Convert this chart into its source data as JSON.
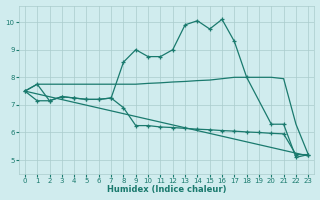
{
  "xlabel": "Humidex (Indice chaleur)",
  "bg_color": "#d0ecee",
  "grid_color": "#aacccc",
  "line_color": "#1a7a6e",
  "xlim": [
    -0.5,
    23.5
  ],
  "ylim": [
    4.5,
    10.6
  ],
  "xticks": [
    0,
    1,
    2,
    3,
    4,
    5,
    6,
    7,
    8,
    9,
    10,
    11,
    12,
    13,
    14,
    15,
    16,
    17,
    18,
    19,
    20,
    21,
    22,
    23
  ],
  "yticks": [
    5,
    6,
    7,
    8,
    9,
    10
  ],
  "lines": [
    {
      "x": [
        0,
        1,
        2,
        3,
        4,
        5,
        6,
        7,
        8,
        9,
        10,
        11,
        12,
        13,
        14,
        15,
        16,
        17,
        18,
        20,
        21,
        22,
        23
      ],
      "y": [
        7.5,
        7.75,
        7.15,
        7.3,
        7.25,
        7.2,
        7.2,
        7.25,
        8.55,
        9.0,
        8.75,
        8.75,
        9.0,
        9.9,
        10.05,
        9.75,
        10.1,
        9.3,
        8.0,
        6.3,
        6.3,
        5.1,
        5.2
      ],
      "marker": true
    },
    {
      "x": [
        0,
        1,
        2,
        3,
        4,
        5,
        6,
        7,
        8,
        9,
        10,
        11,
        12,
        13,
        14,
        15,
        16,
        17,
        18,
        20,
        21,
        22,
        23
      ],
      "y": [
        7.5,
        7.75,
        7.75,
        7.75,
        7.75,
        7.75,
        7.75,
        7.75,
        7.75,
        7.75,
        7.78,
        7.8,
        7.83,
        7.85,
        7.88,
        7.9,
        7.95,
        8.0,
        8.0,
        8.0,
        7.95,
        6.3,
        5.2
      ],
      "marker": false
    },
    {
      "x": [
        0,
        23
      ],
      "y": [
        7.5,
        5.15
      ],
      "marker": false
    },
    {
      "x": [
        0,
        1,
        2,
        3,
        4,
        5,
        6,
        7,
        8,
        9,
        10,
        11,
        12,
        13,
        14,
        15,
        16,
        17,
        18,
        19,
        20,
        21,
        22,
        23
      ],
      "y": [
        7.5,
        7.15,
        7.15,
        7.3,
        7.25,
        7.2,
        7.2,
        7.25,
        6.9,
        6.25,
        6.25,
        6.2,
        6.18,
        6.15,
        6.12,
        6.1,
        6.07,
        6.05,
        6.02,
        6.0,
        5.97,
        5.95,
        5.2,
        5.2
      ],
      "marker": true
    }
  ]
}
